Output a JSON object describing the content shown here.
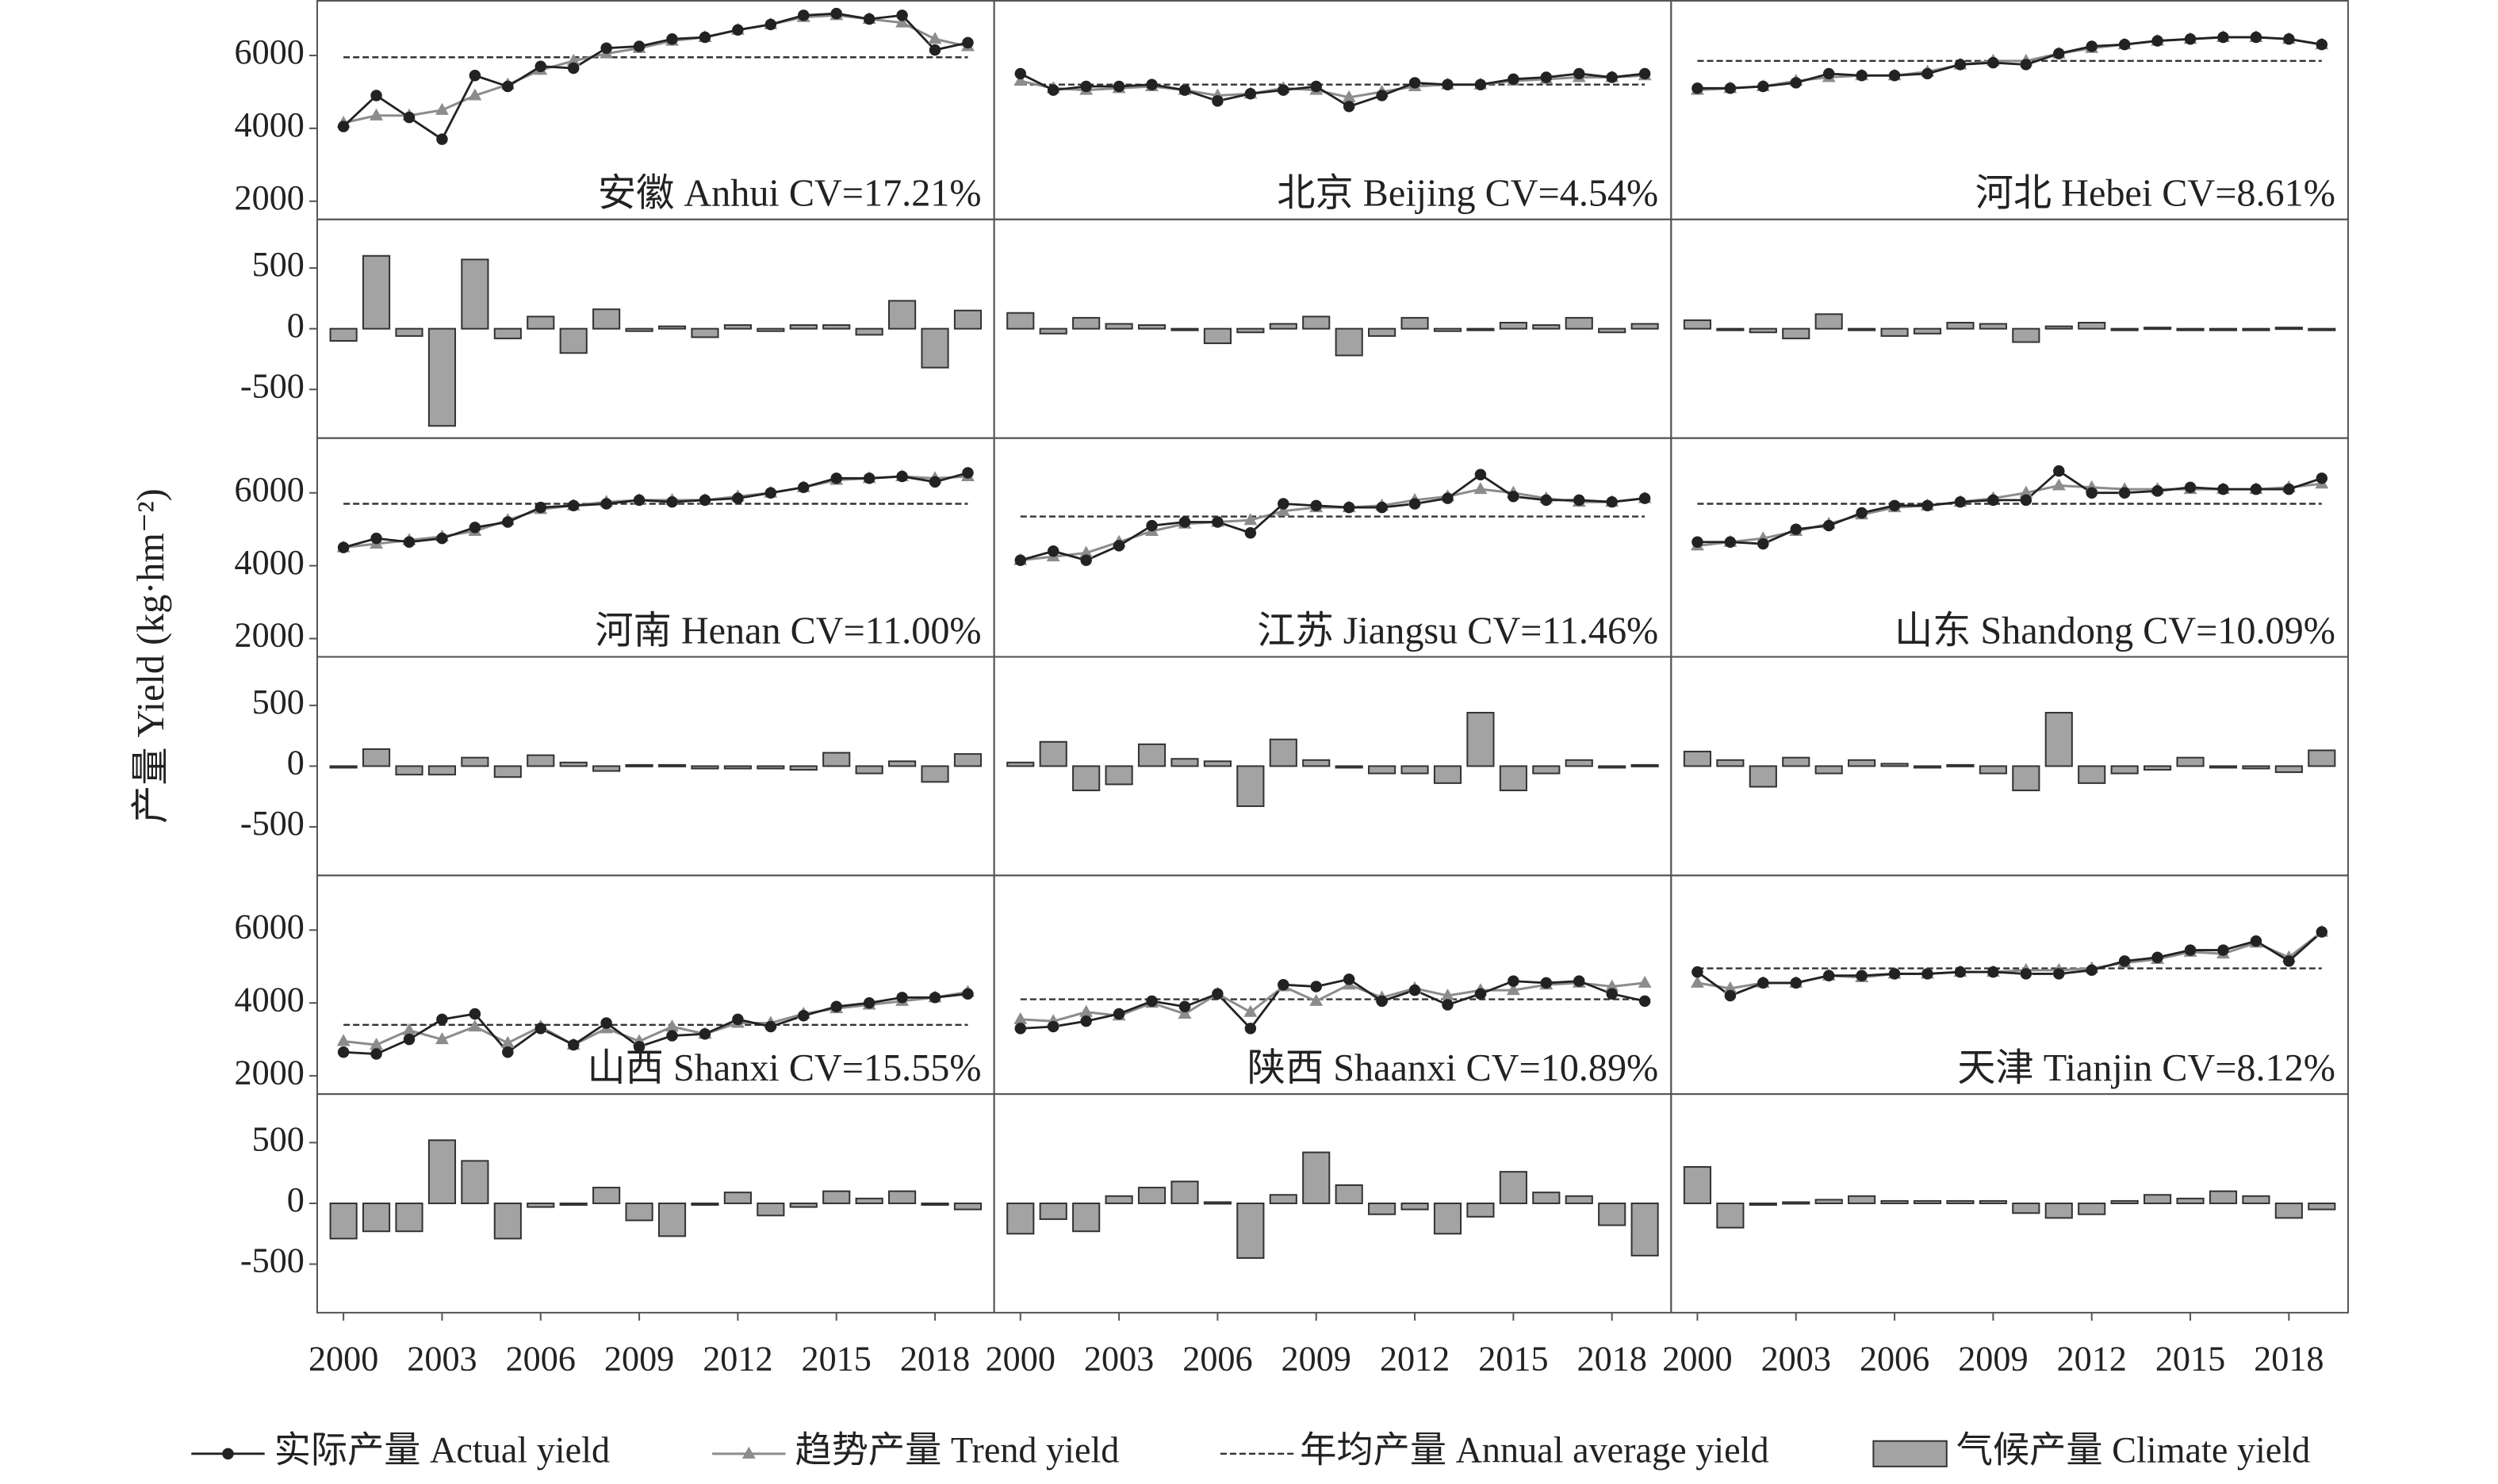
{
  "chart_data": {
    "type": "panels",
    "y_label": "产量 Yield (kg·hm⁻²)",
    "x": [
      2000,
      2001,
      2002,
      2003,
      2004,
      2005,
      2006,
      2007,
      2008,
      2009,
      2010,
      2011,
      2012,
      2013,
      2014,
      2015,
      2016,
      2017,
      2018,
      2019
    ],
    "xlim": [
      1999.2,
      2019.8
    ],
    "xticks": [
      2000,
      2003,
      2006,
      2009,
      2012,
      2015,
      2018
    ],
    "yield_ylim": [
      1500,
      7500
    ],
    "yield_yticks": [
      2000,
      4000,
      6000
    ],
    "climate_ylim": [
      -900,
      900
    ],
    "climate_yticks": [
      -500,
      0,
      500
    ],
    "legend": [
      {
        "name": "实际产量 Actual yield",
        "color": "#222222"
      },
      {
        "name": "趋势产量 Trend yield",
        "color": "#8c8c8c"
      },
      {
        "name": "年均产量 Annual average yield",
        "color": "#333333"
      },
      {
        "name": "气候产量 Climate yield",
        "color": "#a3a3a3"
      }
    ],
    "panels": [
      {
        "label": "安徽 Anhui CV=17.21%",
        "actual": [
          4050,
          4900,
          4300,
          3700,
          5450,
          5150,
          5700,
          5650,
          6200,
          6250,
          6450,
          6500,
          6700,
          6850,
          7100,
          7150,
          7000,
          7100,
          6150,
          6350
        ],
        "trend": [
          4150,
          4350,
          4350,
          4500,
          4900,
          5200,
          5600,
          5850,
          6050,
          6200,
          6400,
          6500,
          6700,
          6850,
          7050,
          7100,
          7000,
          6900,
          6450,
          6250
        ],
        "average": 5950,
        "climate": [
          -100,
          600,
          -60,
          -800,
          570,
          -80,
          100,
          -200,
          160,
          -20,
          20,
          -70,
          30,
          -20,
          30,
          30,
          -50,
          230,
          -320,
          150
        ]
      },
      {
        "label": "北京 Beijing CV=4.54%",
        "actual": [
          5500,
          5050,
          5150,
          5150,
          5200,
          5050,
          4750,
          4950,
          5050,
          5150,
          4600,
          4900,
          5250,
          5200,
          5200,
          5350,
          5400,
          5500,
          5400,
          5500
        ],
        "trend": [
          5300,
          5100,
          5050,
          5100,
          5150,
          5050,
          4900,
          4950,
          5100,
          5050,
          4850,
          5000,
          5150,
          5200,
          5200,
          5300,
          5350,
          5400,
          5400,
          5450
        ],
        "average": 5200,
        "climate": [
          130,
          -40,
          90,
          40,
          30,
          0,
          -120,
          -30,
          40,
          100,
          -220,
          -60,
          90,
          -20,
          0,
          50,
          30,
          90,
          -30,
          40
        ]
      },
      {
        "label": "河北 Hebei CV=8.61%",
        "actual": [
          5100,
          5100,
          5150,
          5250,
          5500,
          5450,
          5450,
          5500,
          5750,
          5800,
          5750,
          6050,
          6250,
          6300,
          6400,
          6450,
          6500,
          6500,
          6450,
          6300
        ],
        "trend": [
          5050,
          5100,
          5150,
          5300,
          5400,
          5450,
          5450,
          5550,
          5750,
          5850,
          5850,
          6050,
          6200,
          6300,
          6400,
          6450,
          6500,
          6500,
          6450,
          6300
        ],
        "average": 5850,
        "climate": [
          70,
          0,
          -30,
          -80,
          120,
          0,
          -60,
          -40,
          50,
          40,
          -110,
          20,
          50,
          0,
          10,
          0,
          0,
          0,
          10,
          -10
        ]
      },
      {
        "label": "河南 Henan CV=11.00%",
        "actual": [
          4500,
          4750,
          4650,
          4750,
          5050,
          5200,
          5600,
          5650,
          5700,
          5800,
          5750,
          5800,
          5850,
          6000,
          6150,
          6400,
          6400,
          6450,
          6300,
          6550
        ],
        "trend": [
          4500,
          4600,
          4700,
          4800,
          4950,
          5250,
          5550,
          5650,
          5750,
          5800,
          5800,
          5800,
          5900,
          6000,
          6150,
          6350,
          6400,
          6450,
          6400,
          6450
        ],
        "average": 5700,
        "climate": [
          0,
          140,
          -70,
          -70,
          70,
          -90,
          90,
          30,
          -40,
          10,
          10,
          -20,
          -20,
          -20,
          -30,
          110,
          -60,
          40,
          -130,
          100
        ]
      },
      {
        "label": "江苏 Jiangsu CV=11.46%",
        "actual": [
          4150,
          4400,
          4150,
          4550,
          5100,
          5200,
          5200,
          4900,
          5700,
          5650,
          5600,
          5600,
          5700,
          5850,
          6500,
          5900,
          5800,
          5800,
          5750,
          5850
        ],
        "trend": [
          4150,
          4250,
          4350,
          4650,
          4950,
          5150,
          5200,
          5250,
          5500,
          5600,
          5600,
          5650,
          5800,
          5900,
          6100,
          6000,
          5850,
          5750,
          5750,
          5850
        ],
        "average": 5350,
        "climate": [
          30,
          200,
          -200,
          -150,
          180,
          60,
          40,
          -330,
          220,
          50,
          0,
          -60,
          -60,
          -140,
          440,
          -200,
          -60,
          50,
          0,
          10
        ]
      },
      {
        "label": "山东 Shandong CV=10.09%",
        "actual": [
          4650,
          4650,
          4600,
          5000,
          5100,
          5450,
          5650,
          5650,
          5750,
          5800,
          5800,
          6600,
          6000,
          6000,
          6050,
          6150,
          6100,
          6100,
          6100,
          6400
        ],
        "trend": [
          4550,
          4650,
          4750,
          4950,
          5150,
          5400,
          5600,
          5650,
          5750,
          5850,
          6000,
          6200,
          6150,
          6100,
          6100,
          6100,
          6100,
          6100,
          6150,
          6250
        ],
        "average": 5700,
        "climate": [
          120,
          50,
          -170,
          70,
          -60,
          50,
          20,
          0,
          10,
          -60,
          -200,
          440,
          -140,
          -60,
          -30,
          70,
          0,
          -20,
          -50,
          130
        ]
      },
      {
        "label": "山西 Shanxi CV=15.55%",
        "actual": [
          2650,
          2600,
          3000,
          3550,
          3700,
          2650,
          3300,
          2850,
          3450,
          2800,
          3100,
          3150,
          3550,
          3350,
          3650,
          3900,
          4000,
          4150,
          4150,
          4250
        ],
        "trend": [
          2950,
          2850,
          3250,
          3000,
          3350,
          2900,
          3350,
          2850,
          3300,
          2950,
          3350,
          3150,
          3450,
          3450,
          3700,
          3850,
          3950,
          4050,
          4150,
          4300
        ],
        "average": 3400,
        "climate": [
          -290,
          -230,
          -230,
          520,
          350,
          -290,
          -30,
          0,
          130,
          -140,
          -270,
          -10,
          90,
          -100,
          -30,
          100,
          40,
          100,
          -10,
          -50
        ]
      },
      {
        "label": "陕西 Shaanxi CV=10.89%",
        "actual": [
          3300,
          3350,
          3500,
          3700,
          4050,
          3900,
          4250,
          3300,
          4500,
          4450,
          4650,
          4050,
          4350,
          3950,
          4250,
          4600,
          4550,
          4600,
          4250,
          4050
        ],
        "trend": [
          3550,
          3500,
          3750,
          3650,
          4000,
          3700,
          4250,
          3750,
          4450,
          4050,
          4500,
          4150,
          4400,
          4200,
          4350,
          4350,
          4500,
          4550,
          4450,
          4550
        ],
        "average": 4100,
        "climate": [
          -250,
          -130,
          -230,
          60,
          130,
          180,
          10,
          -450,
          70,
          420,
          150,
          -90,
          -50,
          -250,
          -110,
          260,
          90,
          60,
          -180,
          -430
        ]
      },
      {
        "label": "天津 Tianjin CV=8.12%",
        "actual": [
          4850,
          4200,
          4550,
          4550,
          4750,
          4750,
          4800,
          4800,
          4850,
          4850,
          4800,
          4800,
          4900,
          5150,
          5250,
          5450,
          5450,
          5700,
          5150,
          5950
        ],
        "trend": [
          4550,
          4400,
          4550,
          4550,
          4750,
          4700,
          4800,
          4800,
          4850,
          4850,
          4900,
          4900,
          4950,
          5100,
          5200,
          5400,
          5350,
          5650,
          5250,
          5950
        ],
        "average": 4950,
        "climate": [
          300,
          -200,
          0,
          10,
          30,
          60,
          20,
          20,
          20,
          20,
          -80,
          -120,
          -90,
          20,
          70,
          40,
          100,
          60,
          -120,
          -50
        ]
      }
    ]
  }
}
